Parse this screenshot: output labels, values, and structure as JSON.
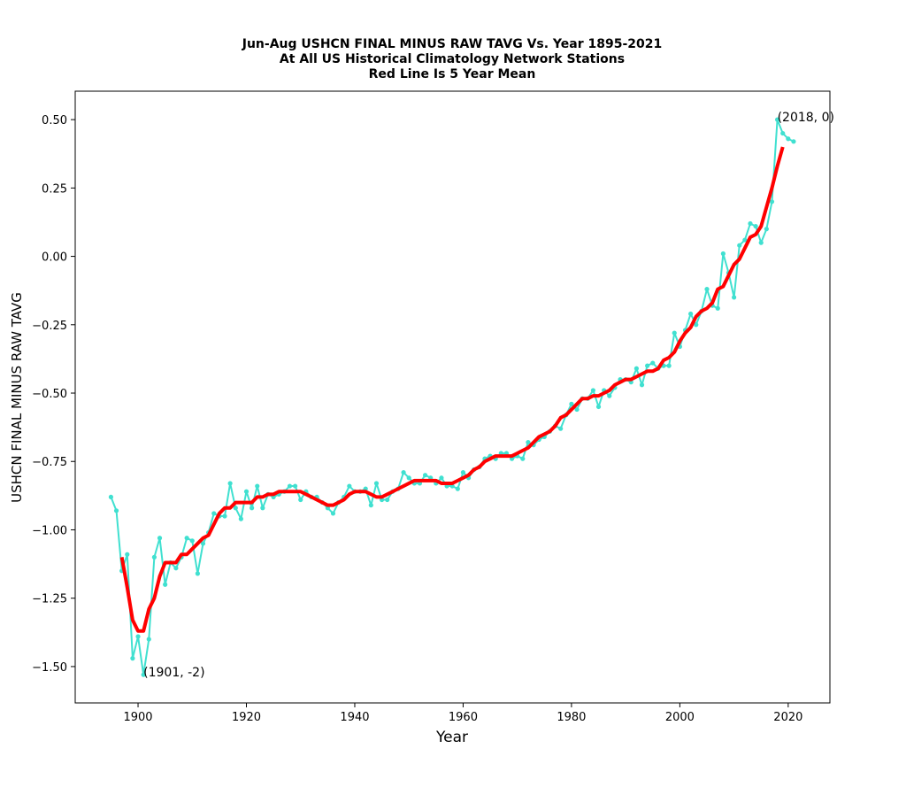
{
  "chart_data": {
    "type": "line",
    "title": [
      "Jun-Aug USHCN FINAL MINUS RAW TAVG Vs. Year 1895-2021",
      "At All US Historical Climatology Network Stations",
      "Red Line Is 5 Year Mean"
    ],
    "xlabel": "Year",
    "ylabel": "USHCN FINAL MINUS RAW TAVG",
    "xlim": [
      1888.4,
      2027.7
    ],
    "ylim": [
      -1.633,
      0.604
    ],
    "xticks": [
      1900,
      1920,
      1940,
      1960,
      1980,
      2000,
      2020
    ],
    "yticks": [
      {
        "value": 0.5,
        "label": "0.50"
      },
      {
        "value": 0.25,
        "label": "0.25"
      },
      {
        "value": 0,
        "label": "0.00"
      },
      {
        "value": -0.25,
        "label": "−0.25"
      },
      {
        "value": -0.5,
        "label": "−0.50"
      },
      {
        "value": -0.75,
        "label": "−0.75"
      },
      {
        "value": -1,
        "label": "−1.00"
      },
      {
        "value": -1.25,
        "label": "−1.25"
      },
      {
        "value": -1.5,
        "label": "−1.50"
      }
    ],
    "grid": false,
    "series": [
      {
        "color": "#40e0d0",
        "markers": true,
        "x": [
          1895,
          1896,
          1897,
          1898,
          1899,
          1900,
          1901,
          1902,
          1903,
          1904,
          1905,
          1906,
          1907,
          1908,
          1909,
          1910,
          1911,
          1912,
          1913,
          1914,
          1915,
          1916,
          1917,
          1918,
          1919,
          1920,
          1921,
          1922,
          1923,
          1924,
          1925,
          1926,
          1927,
          1928,
          1929,
          1930,
          1931,
          1932,
          1933,
          1934,
          1935,
          1936,
          1937,
          1938,
          1939,
          1940,
          1941,
          1942,
          1943,
          1944,
          1945,
          1946,
          1947,
          1948,
          1949,
          1950,
          1951,
          1952,
          1953,
          1954,
          1955,
          1956,
          1957,
          1958,
          1959,
          1960,
          1961,
          1962,
          1963,
          1964,
          1965,
          1966,
          1967,
          1968,
          1969,
          1970,
          1971,
          1972,
          1973,
          1974,
          1975,
          1976,
          1977,
          1978,
          1979,
          1980,
          1981,
          1982,
          1983,
          1984,
          1985,
          1986,
          1987,
          1988,
          1989,
          1990,
          1991,
          1992,
          1993,
          1994,
          1995,
          1996,
          1997,
          1998,
          1999,
          2000,
          2001,
          2002,
          2003,
          2004,
          2005,
          2006,
          2007,
          2008,
          2009,
          2010,
          2011,
          2012,
          2013,
          2014,
          2015,
          2016,
          2017,
          2018,
          2019,
          2020,
          2021
        ],
        "values": [
          -0.88,
          -0.93,
          -1.15,
          -1.09,
          -1.47,
          -1.39,
          -1.53,
          -1.4,
          -1.1,
          -1.03,
          -1.2,
          -1.12,
          -1.14,
          -1.1,
          -1.03,
          -1.04,
          -1.16,
          -1.05,
          -1.01,
          -0.94,
          -0.95,
          -0.95,
          -0.83,
          -0.92,
          -0.96,
          -0.86,
          -0.92,
          -0.84,
          -0.92,
          -0.87,
          -0.88,
          -0.87,
          -0.86,
          -0.84,
          -0.84,
          -0.89,
          -0.86,
          -0.88,
          -0.88,
          -0.9,
          -0.92,
          -0.94,
          -0.9,
          -0.88,
          -0.84,
          -0.86,
          -0.86,
          -0.85,
          -0.91,
          -0.83,
          -0.89,
          -0.89,
          -0.86,
          -0.85,
          -0.79,
          -0.81,
          -0.83,
          -0.83,
          -0.8,
          -0.81,
          -0.83,
          -0.81,
          -0.84,
          -0.84,
          -0.85,
          -0.79,
          -0.81,
          -0.78,
          -0.77,
          -0.74,
          -0.73,
          -0.74,
          -0.72,
          -0.72,
          -0.74,
          -0.73,
          -0.74,
          -0.68,
          -0.69,
          -0.67,
          -0.66,
          -0.64,
          -0.62,
          -0.63,
          -0.58,
          -0.54,
          -0.56,
          -0.52,
          -0.52,
          -0.49,
          -0.55,
          -0.49,
          -0.51,
          -0.48,
          -0.45,
          -0.45,
          -0.46,
          -0.41,
          -0.47,
          -0.4,
          -0.39,
          -0.41,
          -0.4,
          -0.4,
          -0.28,
          -0.33,
          -0.27,
          -0.21,
          -0.25,
          -0.2,
          -0.12,
          -0.18,
          -0.19,
          0.01,
          -0.06,
          -0.15,
          0.04,
          0.06,
          0.12,
          0.11,
          0.05,
          0.1,
          0.2,
          0.5,
          0.45,
          0.43,
          0.42
        ]
      },
      {
        "color": "#ff0000",
        "markers": false,
        "x": [
          1897,
          1898,
          1899,
          1900,
          1901,
          1902,
          1903,
          1904,
          1905,
          1906,
          1907,
          1908,
          1909,
          1910,
          1911,
          1912,
          1913,
          1914,
          1915,
          1916,
          1917,
          1918,
          1919,
          1920,
          1921,
          1922,
          1923,
          1924,
          1925,
          1926,
          1927,
          1928,
          1929,
          1930,
          1931,
          1932,
          1933,
          1934,
          1935,
          1936,
          1937,
          1938,
          1939,
          1940,
          1941,
          1942,
          1943,
          1944,
          1945,
          1946,
          1947,
          1948,
          1949,
          1950,
          1951,
          1952,
          1953,
          1954,
          1955,
          1956,
          1957,
          1958,
          1959,
          1960,
          1961,
          1962,
          1963,
          1964,
          1965,
          1966,
          1967,
          1968,
          1969,
          1970,
          1971,
          1972,
          1973,
          1974,
          1975,
          1976,
          1977,
          1978,
          1979,
          1980,
          1981,
          1982,
          1983,
          1984,
          1985,
          1986,
          1987,
          1988,
          1989,
          1990,
          1991,
          1992,
          1993,
          1994,
          1995,
          1996,
          1997,
          1998,
          1999,
          2000,
          2001,
          2002,
          2003,
          2004,
          2005,
          2006,
          2007,
          2008,
          2009,
          2010,
          2011,
          2012,
          2013,
          2014,
          2015,
          2016,
          2017,
          2018,
          2019
        ],
        "values": [
          -1.1,
          -1.21,
          -1.33,
          -1.37,
          -1.37,
          -1.29,
          -1.25,
          -1.17,
          -1.12,
          -1.12,
          -1.12,
          -1.09,
          -1.09,
          -1.07,
          -1.05,
          -1.03,
          -1.02,
          -0.98,
          -0.94,
          -0.92,
          -0.92,
          -0.9,
          -0.9,
          -0.9,
          -0.9,
          -0.88,
          -0.88,
          -0.87,
          -0.87,
          -0.86,
          -0.86,
          -0.86,
          -0.86,
          -0.86,
          -0.87,
          -0.88,
          -0.89,
          -0.9,
          -0.91,
          -0.91,
          -0.9,
          -0.89,
          -0.87,
          -0.86,
          -0.86,
          -0.86,
          -0.87,
          -0.88,
          -0.88,
          -0.87,
          -0.86,
          -0.85,
          -0.84,
          -0.83,
          -0.82,
          -0.82,
          -0.82,
          -0.82,
          -0.82,
          -0.83,
          -0.83,
          -0.83,
          -0.82,
          -0.81,
          -0.8,
          -0.78,
          -0.77,
          -0.75,
          -0.74,
          -0.73,
          -0.73,
          -0.73,
          -0.73,
          -0.72,
          -0.71,
          -0.7,
          -0.68,
          -0.66,
          -0.65,
          -0.64,
          -0.62,
          -0.59,
          -0.58,
          -0.56,
          -0.54,
          -0.52,
          -0.52,
          -0.51,
          -0.51,
          -0.5,
          -0.49,
          -0.47,
          -0.46,
          -0.45,
          -0.45,
          -0.44,
          -0.43,
          -0.42,
          -0.42,
          -0.41,
          -0.38,
          -0.37,
          -0.35,
          -0.31,
          -0.28,
          -0.26,
          -0.22,
          -0.2,
          -0.19,
          -0.17,
          -0.12,
          -0.11,
          -0.07,
          -0.03,
          -0.01,
          0.03,
          0.07,
          0.08,
          0.11,
          0.18,
          0.25,
          0.33,
          0.4
        ]
      }
    ],
    "annotations": [
      {
        "text": "(2018, 0)",
        "x": 2018,
        "y": 0.5
      },
      {
        "text": "(1901, -2)",
        "x": 1901,
        "y": -1.53
      }
    ]
  }
}
